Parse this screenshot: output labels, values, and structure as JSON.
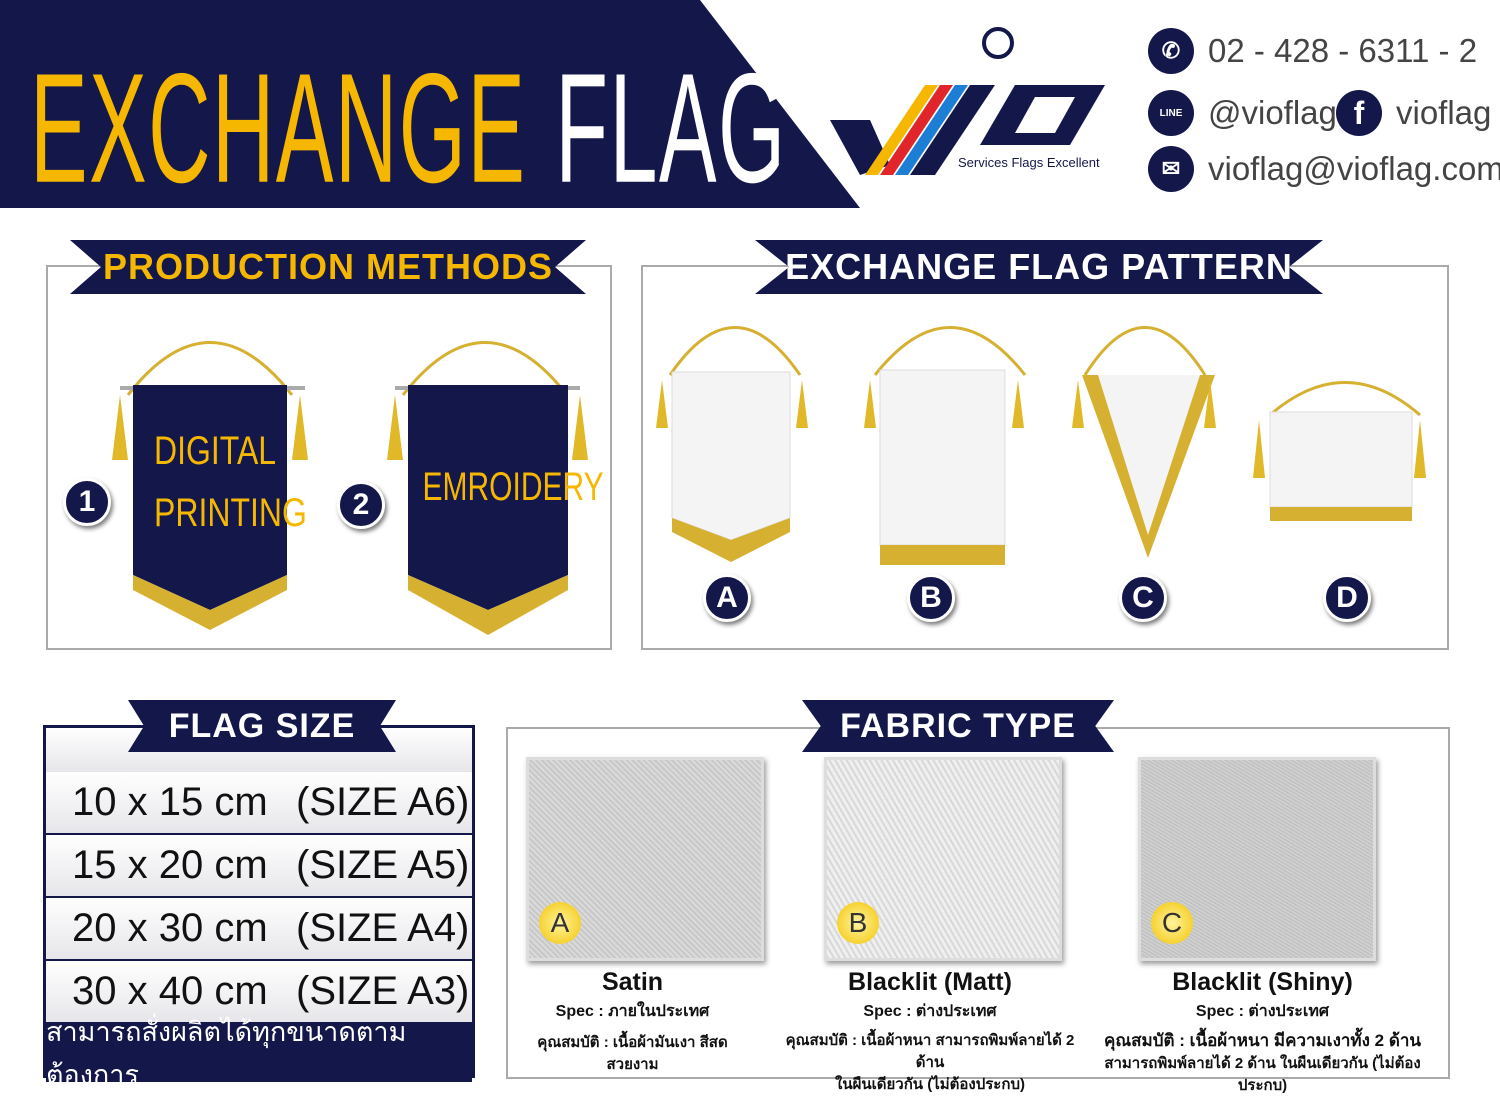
{
  "header": {
    "title_part1": "EXCHANGE",
    "title_part2": "FLAG",
    "logo_tagline": "Services Flags Excellent",
    "contacts": [
      {
        "icon": "phone-icon",
        "text": "02 - 428 - 6311 - 2"
      },
      {
        "icon": "line-icon",
        "text": "@vioflag",
        "icon_label": "LINE"
      },
      {
        "icon": "facebook-icon",
        "text": "vioflag"
      },
      {
        "icon": "mail-icon",
        "text": "vioflag@vioflag.com"
      }
    ]
  },
  "colors": {
    "navy": "#14174a",
    "gold": "#f6b700"
  },
  "production": {
    "title": "PRODUCTION METHODS",
    "items": [
      {
        "num": "1",
        "line1": "DIGITAL",
        "line2": "PRINTING"
      },
      {
        "num": "2",
        "line1": "EMROIDERY",
        "line2": ""
      }
    ]
  },
  "pattern": {
    "title": "EXCHANGE FLAG PATTERN",
    "items": [
      "A",
      "B",
      "C",
      "D"
    ]
  },
  "size": {
    "title": "FLAG SIZE",
    "rows": [
      {
        "dim": "10 x 15 cm",
        "size": "(SIZE A6)"
      },
      {
        "dim": "15 x 20 cm",
        "size": "(SIZE A5)"
      },
      {
        "dim": "20 x 30 cm",
        "size": "(SIZE A4)"
      },
      {
        "dim": "30 x 40 cm",
        "size": "(SIZE A3)"
      }
    ],
    "footer": "สามารถสั่งผลิตได้ทุกขนาดตามต้องการ"
  },
  "fabric": {
    "title": "FABRIC TYPE",
    "items": [
      {
        "letter": "A",
        "name": "Satin",
        "spec": "Spec : ภายในประเทศ",
        "desc1": "คุณสมบัติ : เนื้อผ้ามันเงา สีสด สวยงาม",
        "desc2": ""
      },
      {
        "letter": "B",
        "name": "Blacklit (Matt)",
        "spec": "Spec : ต่างประเทศ",
        "desc1": "คุณสมบัติ : เนื้อผ้าหนา สามารถพิมพ์ลายได้ 2 ด้าน",
        "desc2": "ในผืนเดียวกัน (ไม่ต้องประกบ)"
      },
      {
        "letter": "C",
        "name": "Blacklit (Shiny)",
        "spec": "Spec : ต่างประเทศ",
        "desc1": "คุณสมบัติ : เนื้อผ้าหนา มีความเงาทั้ง 2 ด้าน",
        "desc2": "สามารถพิมพ์ลายได้ 2 ด้าน ในผืนเดียวกัน (ไม่ต้องประกบ)"
      }
    ]
  }
}
